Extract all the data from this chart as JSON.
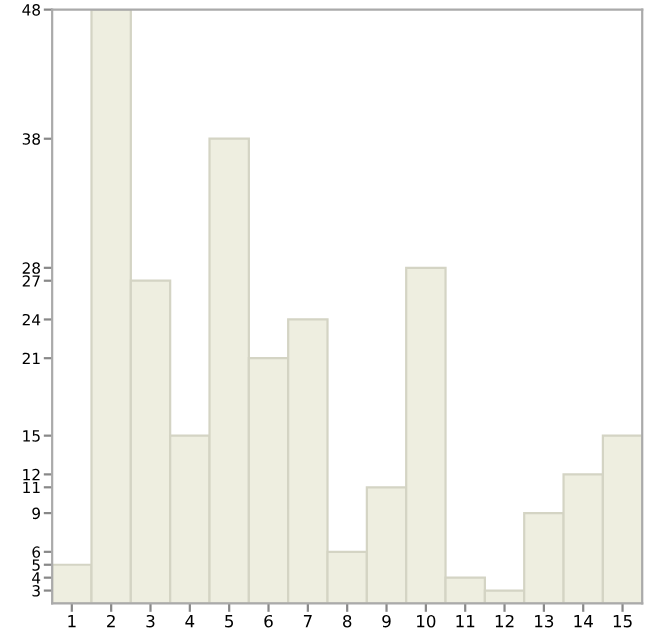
{
  "chart_data": {
    "type": "bar",
    "categories": [
      "1",
      "2",
      "3",
      "4",
      "5",
      "6",
      "7",
      "8",
      "9",
      "10",
      "11",
      "12",
      "13",
      "14",
      "15"
    ],
    "values": [
      5,
      48,
      27,
      15,
      38,
      21,
      24,
      6,
      11,
      28,
      4,
      3,
      9,
      12,
      15
    ],
    "color": "#eeeee0",
    "ylim": [
      2,
      48
    ],
    "yticks": [
      3,
      4,
      5,
      6,
      9,
      11,
      12,
      15,
      21,
      24,
      27,
      28,
      38,
      48
    ],
    "grid": false,
    "legend": false
  }
}
